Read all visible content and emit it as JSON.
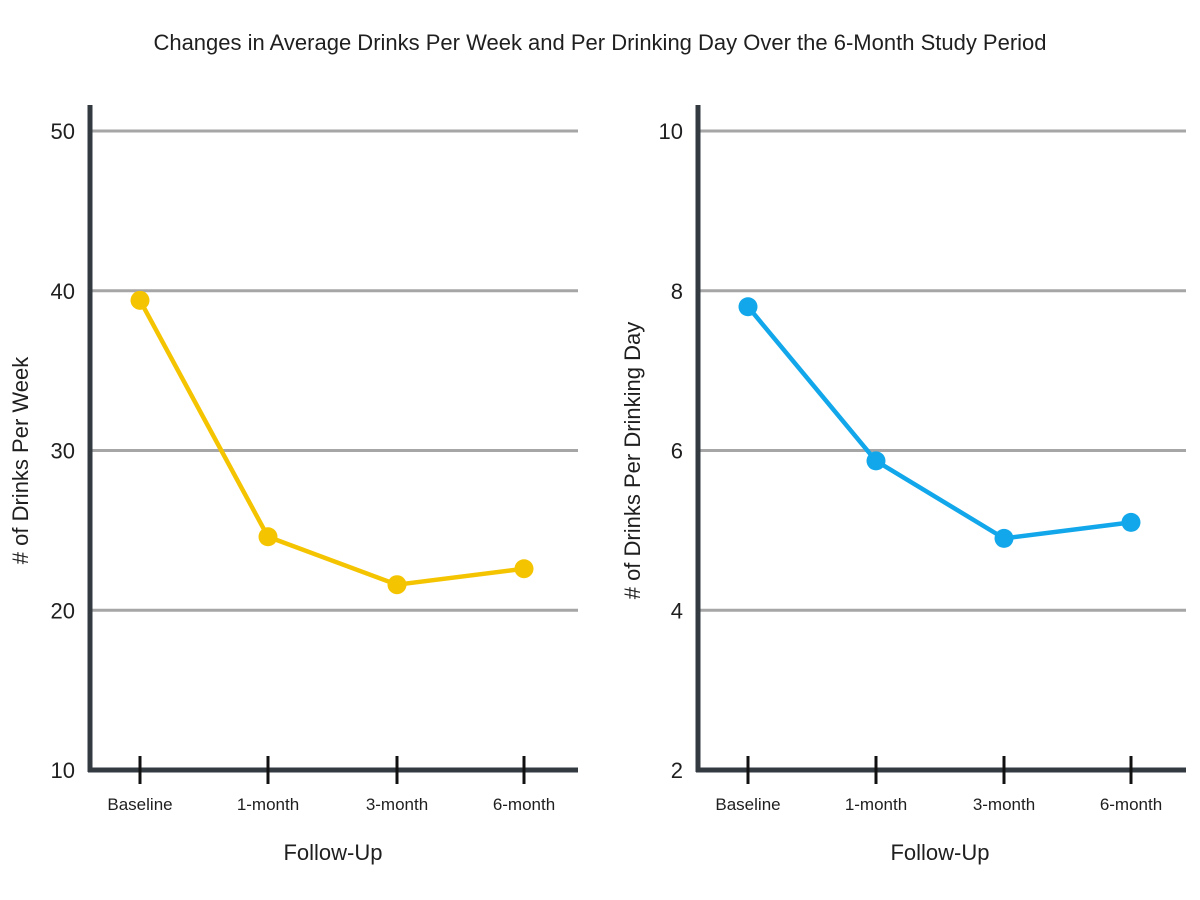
{
  "title": "Changes in Average Drinks Per Week and Per Drinking Day Over the 6-Month Study Period",
  "colors": {
    "axis": "#333a40",
    "grid": "#a6a6a6",
    "left_series": "#f5c400",
    "right_series": "#12a7ea"
  },
  "chart_data": [
    {
      "type": "line",
      "categories": [
        "Baseline",
        "1-month",
        "3-month",
        "6-month"
      ],
      "values": [
        39.4,
        24.6,
        21.6,
        22.6
      ],
      "xlabel": "Follow-Up",
      "ylabel": "# of Drinks Per Week",
      "ylim": [
        10,
        50
      ],
      "yticks": [
        10,
        20,
        30,
        40,
        50
      ],
      "gridlines": [
        20,
        30,
        40,
        50
      ],
      "grid": true
    },
    {
      "type": "line",
      "categories": [
        "Baseline",
        "1-month",
        "3-month",
        "6-month"
      ],
      "values": [
        7.8,
        5.87,
        4.9,
        5.1
      ],
      "xlabel": "Follow-Up",
      "ylabel": "# of Drinks Per Drinking Day",
      "ylim": [
        2,
        10
      ],
      "yticks": [
        2,
        4,
        6,
        8,
        10
      ],
      "gridlines": [
        4,
        6,
        8,
        10
      ],
      "grid": true
    }
  ]
}
